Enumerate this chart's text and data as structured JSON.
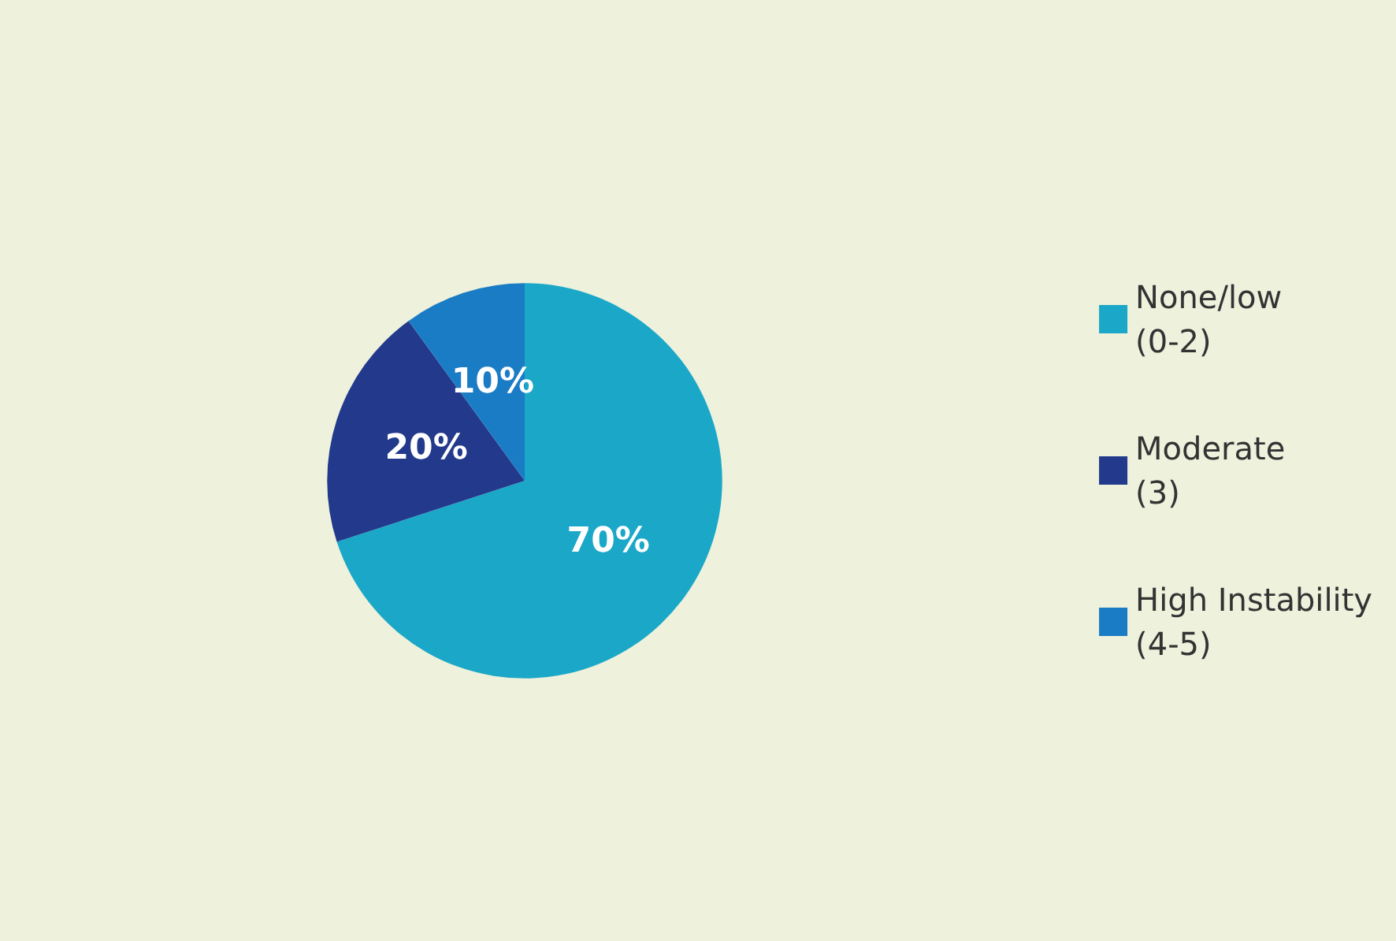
{
  "chart_data": {
    "type": "pie",
    "categories": [
      "None/low (0-2)",
      "Moderate (3)",
      "High Instability (4-5)"
    ],
    "values": [
      70,
      20,
      10
    ],
    "colors": [
      "#1ba8c8",
      "#22398c",
      "#1b7cc6"
    ],
    "value_labels": [
      "70%",
      "20%",
      "10%"
    ],
    "legend": "right"
  }
}
